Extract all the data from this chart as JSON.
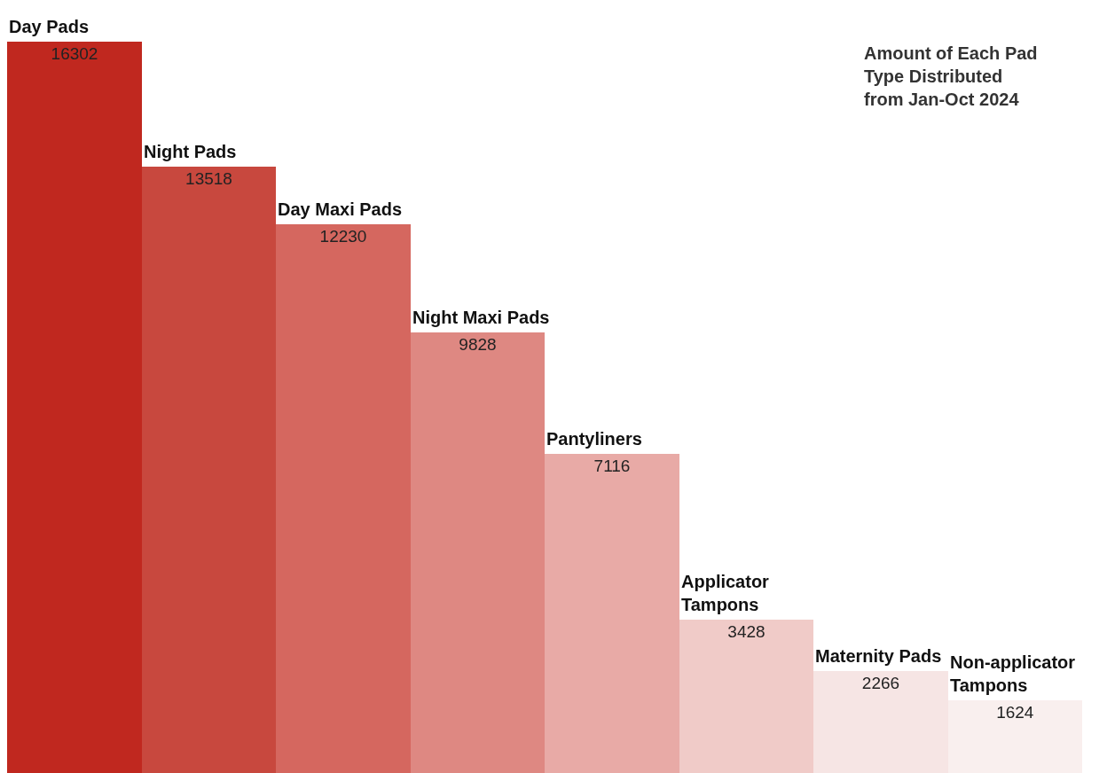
{
  "chart_data": {
    "type": "bar",
    "title": "Amount of Each Pad\nType Distributed\nfrom Jan-Oct 2024",
    "categories": [
      "Day Pads",
      "Night Pads",
      "Day Maxi Pads",
      "Night Maxi Pads",
      "Pantyliners",
      "Applicator Tampons",
      "Maternity Pads",
      "Non-applicator Tampons"
    ],
    "values": [
      16302,
      13518,
      12230,
      9828,
      7116,
      3428,
      2266,
      1624
    ],
    "colors": [
      "#c0281f",
      "#c8483e",
      "#d5675f",
      "#de8882",
      "#e8aaa6",
      "#f0cbc8",
      "#f6e5e4",
      "#f9efee"
    ],
    "data_labels": true
  }
}
